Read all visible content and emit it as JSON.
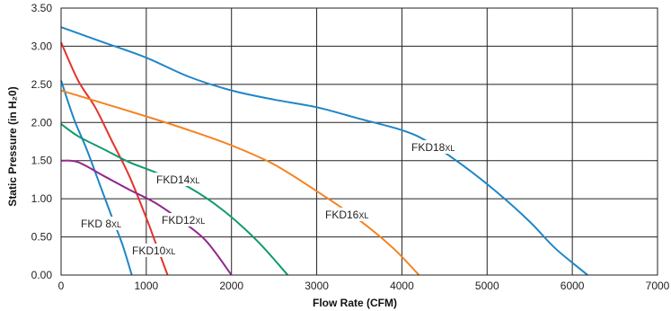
{
  "chart_data": {
    "type": "line",
    "title": "",
    "xlabel": "Flow Rate (CFM)",
    "ylabel": "Static Pressure (in H₂0)",
    "xlim": [
      0,
      7000
    ],
    "ylim": [
      0,
      3.5
    ],
    "x_ticks": [
      "0",
      "1000",
      "2000",
      "3000",
      "4000",
      "5000",
      "6000",
      "7000"
    ],
    "y_ticks": [
      "0.00",
      "0.50",
      "1.00",
      "1.50",
      "2.00",
      "2.50",
      "3.00",
      "3.50"
    ],
    "grid": true,
    "series": [
      {
        "name": "FKD 8",
        "suffix": "XL",
        "color": "#1f86c6",
        "points": [
          [
            0,
            2.55
          ],
          [
            150,
            2.05
          ],
          [
            300,
            1.65
          ],
          [
            450,
            1.2
          ],
          [
            600,
            0.75
          ],
          [
            720,
            0.4
          ],
          [
            830,
            0.0
          ]
        ]
      },
      {
        "name": "FKD10",
        "suffix": "XL",
        "color": "#e5322d",
        "points": [
          [
            0,
            3.05
          ],
          [
            200,
            2.55
          ],
          [
            400,
            2.2
          ],
          [
            600,
            1.75
          ],
          [
            800,
            1.3
          ],
          [
            1000,
            0.75
          ],
          [
            1100,
            0.45
          ],
          [
            1250,
            0.0
          ]
        ]
      },
      {
        "name": "FKD12",
        "suffix": "XL",
        "color": "#93278f",
        "points": [
          [
            0,
            1.5
          ],
          [
            200,
            1.48
          ],
          [
            500,
            1.3
          ],
          [
            800,
            1.12
          ],
          [
            1100,
            0.95
          ],
          [
            1400,
            0.72
          ],
          [
            1700,
            0.45
          ],
          [
            2000,
            0.0
          ]
        ]
      },
      {
        "name": "FKD14",
        "suffix": "XL",
        "color": "#0f9a6e",
        "points": [
          [
            0,
            1.98
          ],
          [
            200,
            1.82
          ],
          [
            500,
            1.65
          ],
          [
            800,
            1.48
          ],
          [
            1100,
            1.35
          ],
          [
            1500,
            1.15
          ],
          [
            1900,
            0.85
          ],
          [
            2300,
            0.45
          ],
          [
            2660,
            0.0
          ]
        ]
      },
      {
        "name": "FKD16",
        "suffix": "XL",
        "color": "#f58220",
        "points": [
          [
            0,
            2.42
          ],
          [
            500,
            2.25
          ],
          [
            1000,
            2.08
          ],
          [
            1500,
            1.9
          ],
          [
            2000,
            1.7
          ],
          [
            2500,
            1.45
          ],
          [
            3000,
            1.1
          ],
          [
            3500,
            0.72
          ],
          [
            3900,
            0.35
          ],
          [
            4200,
            0.0
          ]
        ]
      },
      {
        "name": "FKD18",
        "suffix": "XL",
        "color": "#1f86c6",
        "points": [
          [
            0,
            3.25
          ],
          [
            500,
            3.05
          ],
          [
            1000,
            2.85
          ],
          [
            1500,
            2.6
          ],
          [
            2000,
            2.42
          ],
          [
            2500,
            2.3
          ],
          [
            3000,
            2.2
          ],
          [
            3500,
            2.05
          ],
          [
            4000,
            1.9
          ],
          [
            4300,
            1.75
          ],
          [
            4700,
            1.45
          ],
          [
            5100,
            1.1
          ],
          [
            5500,
            0.7
          ],
          [
            5800,
            0.35
          ],
          [
            6180,
            0.0
          ]
        ]
      }
    ]
  }
}
